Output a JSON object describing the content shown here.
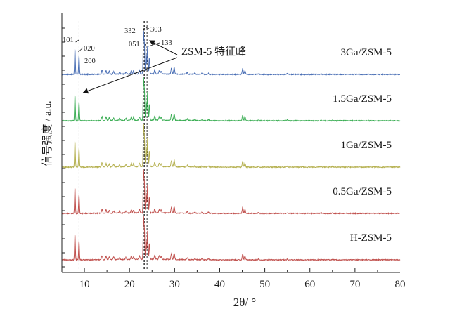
{
  "chart_data": {
    "type": "line",
    "xlabel": "2θ/ °",
    "ylabel": "信号强度 / a.u.",
    "xlim": [
      5,
      80
    ],
    "xticks": [
      10,
      20,
      30,
      40,
      50,
      60,
      70,
      80
    ],
    "y_axis_numbers": "none",
    "grid": false,
    "legend": "none",
    "series": [
      {
        "name": "3Ga/ZSM-5",
        "color": "#4a6fb5",
        "offset": 4
      },
      {
        "name": "1.5Ga/ZSM-5",
        "color": "#3cae55",
        "offset": 3
      },
      {
        "name": "1Ga/ZSM-5",
        "color": "#b5b04f",
        "offset": 2
      },
      {
        "name": "0.5Ga/ZSM-5",
        "color": "#c0504d",
        "offset": 1
      },
      {
        "name": "H-ZSM-5",
        "color": "#c0504d",
        "offset": 0
      }
    ],
    "peaks": [
      {
        "x": 7.9,
        "h": 0.9
      },
      {
        "x": 8.8,
        "h": 0.65
      },
      {
        "x": 13.9,
        "h": 0.14
      },
      {
        "x": 14.8,
        "h": 0.12
      },
      {
        "x": 15.5,
        "h": 0.1
      },
      {
        "x": 16.5,
        "h": 0.08
      },
      {
        "x": 17.8,
        "h": 0.07
      },
      {
        "x": 19.2,
        "h": 0.07
      },
      {
        "x": 20.4,
        "h": 0.12
      },
      {
        "x": 20.9,
        "h": 0.1
      },
      {
        "x": 22.2,
        "h": 0.12
      },
      {
        "x": 23.1,
        "h": 1.4
      },
      {
        "x": 23.3,
        "h": 1.0
      },
      {
        "x": 23.7,
        "h": 0.65
      },
      {
        "x": 24.0,
        "h": 0.95
      },
      {
        "x": 24.4,
        "h": 0.55
      },
      {
        "x": 25.6,
        "h": 0.14
      },
      {
        "x": 26.6,
        "h": 0.12
      },
      {
        "x": 27.0,
        "h": 0.1
      },
      {
        "x": 29.3,
        "h": 0.2
      },
      {
        "x": 29.9,
        "h": 0.22
      },
      {
        "x": 32.8,
        "h": 0.05
      },
      {
        "x": 34.5,
        "h": 0.04
      },
      {
        "x": 36.1,
        "h": 0.05
      },
      {
        "x": 37.5,
        "h": 0.04
      },
      {
        "x": 45.1,
        "h": 0.2
      },
      {
        "x": 45.6,
        "h": 0.14
      },
      {
        "x": 48.6,
        "h": 0.03
      },
      {
        "x": 55.0,
        "h": 0.03
      },
      {
        "x": 62.5,
        "h": 0.02
      },
      {
        "x": 65.0,
        "h": 0.02
      }
    ],
    "reference_lines_x": [
      7.9,
      8.8,
      23.1,
      23.3,
      23.7,
      24.0
    ],
    "peak_labels": [
      "101",
      "020",
      "200",
      "332",
      "303",
      "051",
      "133"
    ],
    "annotation": "ZSM-5 特征峰"
  }
}
